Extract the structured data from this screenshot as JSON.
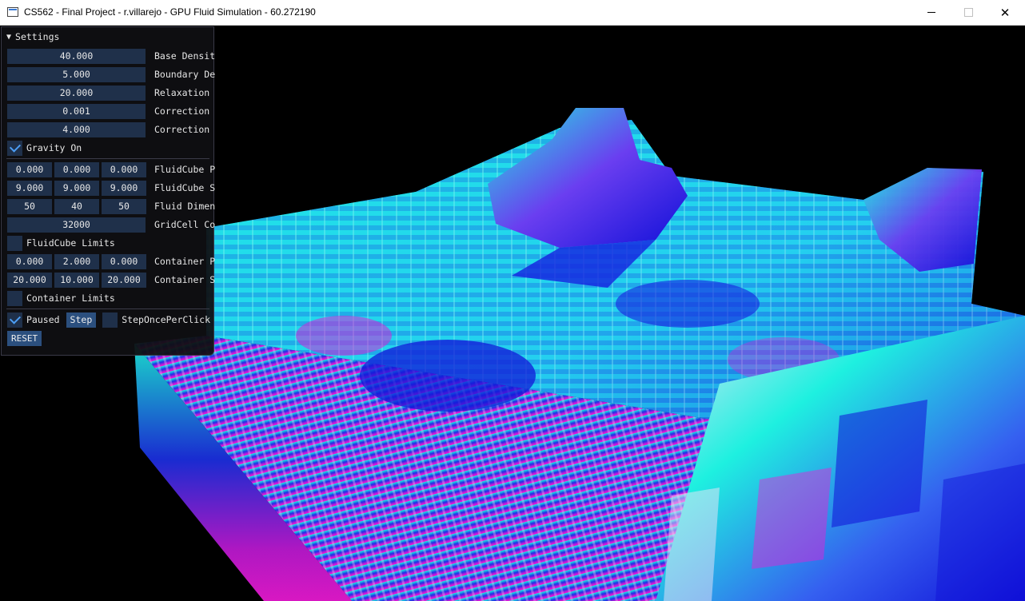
{
  "window": {
    "title": "CS562 - Final Project - r.villarejo - GPU Fluid Simulation - 60.272190",
    "close_glyph": "✕"
  },
  "panel": {
    "header": "Settings",
    "collapse_arrow": "▼",
    "fields": {
      "base_density": {
        "value": "40.000",
        "label": "Base Densit"
      },
      "boundary_density": {
        "value": "5.000",
        "label": "Boundary De"
      },
      "relaxation": {
        "value": "20.000",
        "label": "Relaxation"
      },
      "correction_1": {
        "value": "0.001",
        "label": "Correction"
      },
      "correction_2": {
        "value": "4.000",
        "label": "Correction"
      }
    },
    "gravity": {
      "label": "Gravity On",
      "checked": true
    },
    "fluidcube_pos": {
      "values": [
        "0.000",
        "0.000",
        "0.000"
      ],
      "label": "FluidCube P"
    },
    "fluidcube_size": {
      "values": [
        "9.000",
        "9.000",
        "9.000"
      ],
      "label": "FluidCube S"
    },
    "fluid_dim": {
      "values": [
        "50",
        "40",
        "50"
      ],
      "label": "Fluid Dimen"
    },
    "gridcell": {
      "value": "32000",
      "label": "GridCell Co"
    },
    "fluidcube_limits": {
      "label": "FluidCube Limits",
      "checked": false
    },
    "container_pos": {
      "values": [
        "0.000",
        "2.000",
        "0.000"
      ],
      "label": "Container P"
    },
    "container_size": {
      "values": [
        "20.000",
        "10.000",
        "20.000"
      ],
      "label": "Container S"
    },
    "container_limits": {
      "label": "Container Limits",
      "checked": false
    },
    "paused": {
      "label": "Paused",
      "checked": true
    },
    "step_label": "Step",
    "step_once": {
      "label": "StepOncePerClick",
      "checked": false
    },
    "reset_label": "RESET"
  },
  "colors": {
    "cyan": "#1ef0e0",
    "blue": "#1010d8",
    "magenta": "#f01ad8",
    "pale": "#f2e4f8",
    "panel_field": "#1f304a",
    "check_accent": "#4c9ef5"
  }
}
